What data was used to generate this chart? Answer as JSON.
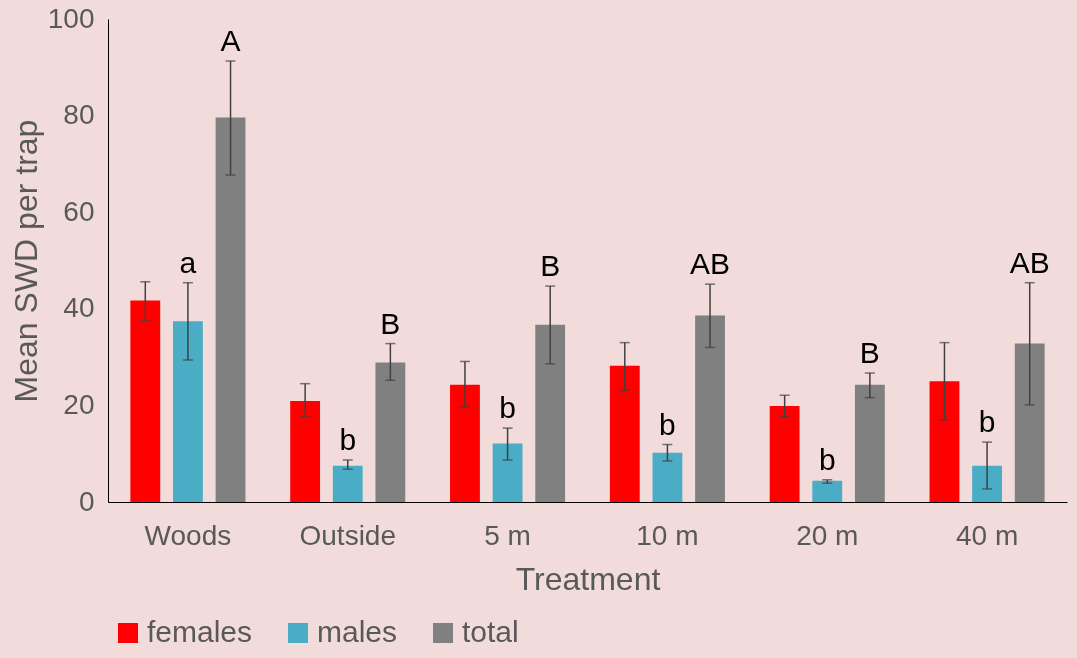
{
  "chart_data": {
    "type": "bar",
    "xlabel": "Treatment",
    "ylabel": "Mean SWD per trap",
    "categories": [
      "Woods",
      "Outside",
      "5 m",
      "10 m",
      "20 m",
      "40 m"
    ],
    "series": [
      {
        "name": "females",
        "color": "#ff0000",
        "values": [
          41.7,
          20.9,
          24.3,
          28.2,
          19.9,
          25.0
        ],
        "errors": [
          [
            37.6,
            45.6
          ],
          [
            17.7,
            24.5
          ],
          [
            19.7,
            29.1
          ],
          [
            23.1,
            33.0
          ],
          [
            17.7,
            22.1
          ],
          [
            17.0,
            33.0
          ]
        ]
      },
      {
        "name": "males",
        "color": "#4bacc6",
        "values": [
          37.4,
          7.5,
          12.1,
          10.2,
          4.4,
          7.5
        ],
        "errors": [
          [
            29.4,
            45.4
          ],
          [
            6.8,
            8.7
          ],
          [
            8.7,
            15.3
          ],
          [
            8.5,
            11.9
          ],
          [
            3.9,
            4.6
          ],
          [
            2.7,
            12.4
          ]
        ],
        "value_labels": [
          "a",
          "b",
          "b",
          "b",
          "b",
          "b"
        ]
      },
      {
        "name": "total",
        "color": "#808080",
        "values": [
          79.6,
          28.9,
          36.7,
          38.6,
          24.3,
          32.8
        ],
        "errors": [
          [
            67.7,
            91.3
          ],
          [
            25.2,
            32.8
          ],
          [
            28.6,
            44.7
          ],
          [
            32.0,
            45.1
          ],
          [
            21.6,
            26.7
          ],
          [
            20.1,
            45.4
          ]
        ],
        "value_labels": [
          "A",
          "B",
          "B",
          "AB",
          "B",
          "AB"
        ]
      }
    ],
    "ylim": [
      0,
      100
    ],
    "yticks": [
      0,
      20,
      40,
      60,
      80,
      100
    ],
    "grid": false,
    "legend": "bottom"
  }
}
